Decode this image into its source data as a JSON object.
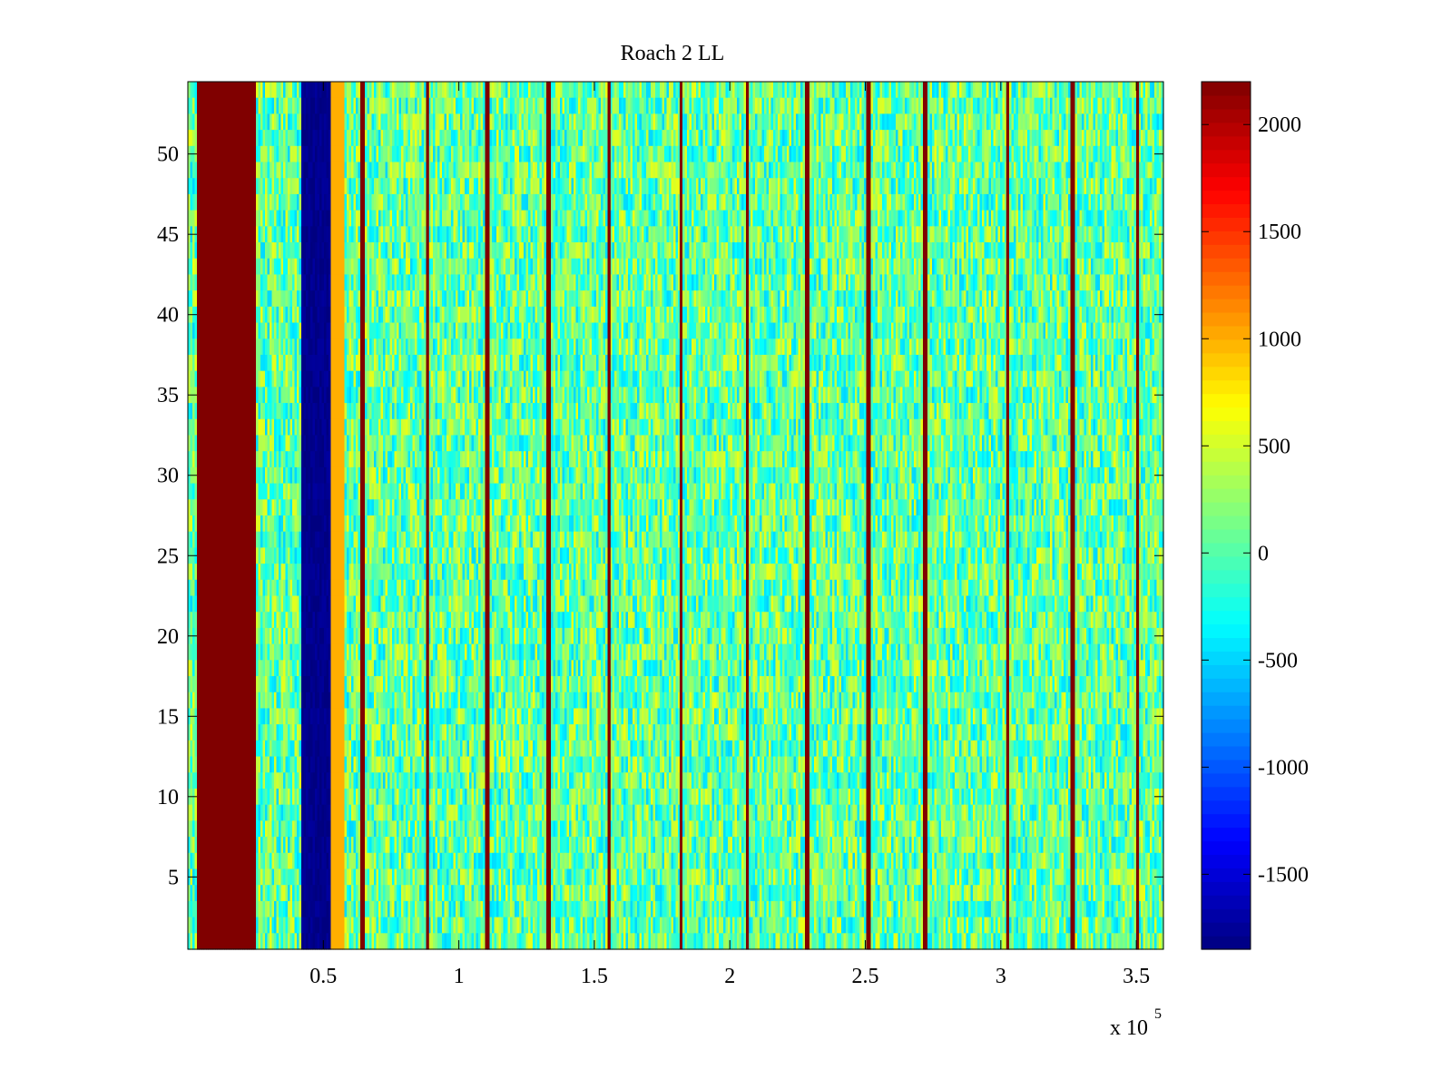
{
  "chart_data": {
    "type": "heatmap",
    "title": "Roach 2 LL",
    "xlabel": "",
    "ylabel": "",
    "x_exponent_label": "x 10",
    "x_exponent_power": "5",
    "xlim": [
      0,
      3.6
    ],
    "ylim": [
      0.5,
      54.5
    ],
    "x_ticks": [
      0.5,
      1,
      1.5,
      2,
      2.5,
      3,
      3.5
    ],
    "x_tick_labels": [
      "0.5",
      "1",
      "1.5",
      "2",
      "2.5",
      "3",
      "3.5"
    ],
    "y_ticks": [
      5,
      10,
      15,
      20,
      25,
      30,
      35,
      40,
      45,
      50
    ],
    "y_tick_labels": [
      "5",
      "10",
      "15",
      "20",
      "25",
      "30",
      "35",
      "40",
      "45",
      "50"
    ],
    "n_rows": 54,
    "colorbar": {
      "colormap": "jet",
      "limits": [
        -1850,
        2200
      ],
      "ticks": [
        -1500,
        -1000,
        -500,
        0,
        500,
        1000,
        1500,
        2000
      ],
      "tick_labels": [
        "-1500",
        "-1000",
        "-500",
        "0",
        "500",
        "1000",
        "1500",
        "2000"
      ]
    },
    "baseline_value": 0,
    "noise_amplitude": 700,
    "bands": [
      {
        "x_start": 0.035,
        "x_end": 0.255,
        "value": 2200
      },
      {
        "x_start": 0.415,
        "x_end": 0.53,
        "value": -1800
      },
      {
        "x_start": 0.53,
        "x_end": 0.58,
        "value": 1000
      }
    ],
    "stripes_x": [
      0.645,
      0.885,
      1.105,
      1.33,
      1.555,
      1.82,
      2.065,
      2.285,
      2.51,
      2.72,
      3.025,
      3.265,
      3.505
    ],
    "stripe_value": 2200,
    "grid": false,
    "legend": "none"
  }
}
